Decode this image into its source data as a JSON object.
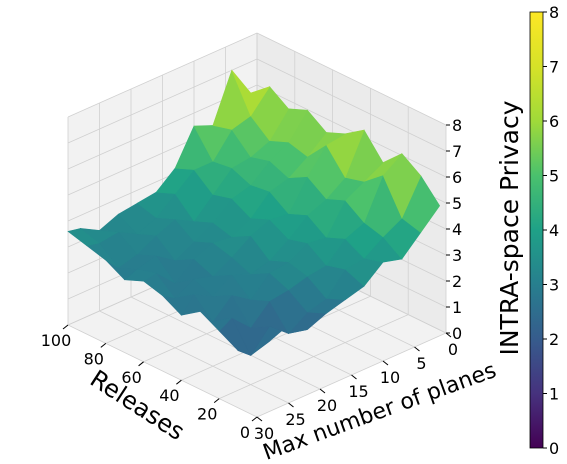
{
  "chart_data": {
    "type": "surface",
    "axes": {
      "x_label": "Releases",
      "y_label": "Max number of planes",
      "z_label": "INTRA-space Privacy",
      "x_ticks": [
        "100",
        "80",
        "60",
        "40",
        "20",
        "0"
      ],
      "x_tick_values": [
        100,
        80,
        60,
        40,
        20,
        0
      ],
      "y_ticks": [
        "0",
        "5",
        "10",
        "15",
        "20",
        "25",
        "30"
      ],
      "y_tick_values": [
        0,
        5,
        10,
        15,
        20,
        25,
        30
      ],
      "z_ticks": [
        "0",
        "1",
        "2",
        "3",
        "4",
        "5",
        "6",
        "7",
        "8"
      ],
      "z_tick_values": [
        0,
        1,
        2,
        3,
        4,
        5,
        6,
        7,
        8
      ],
      "xlim": [
        0,
        100
      ],
      "ylim": [
        0,
        30
      ],
      "zlim": [
        0,
        8
      ]
    },
    "colorbar": {
      "colormap": "viridis",
      "range": [
        0,
        8
      ],
      "ticks": [
        "0",
        "1",
        "2",
        "3",
        "4",
        "5",
        "6",
        "7",
        "8"
      ]
    },
    "grid": true,
    "surface_colors": {
      "low": "#440154",
      "mid": "#21918c",
      "high": "#fde725"
    },
    "surface": {
      "releases": [
        0,
        10,
        20,
        30,
        40,
        50,
        60,
        70,
        80,
        90,
        100
      ],
      "planes": [
        1,
        4,
        7,
        10,
        13,
        16,
        19,
        22,
        25,
        28,
        30
      ],
      "z": [
        [
          5.0,
          5.8,
          6.3,
          5.6,
          6.5,
          6.0,
          5.7,
          6.2,
          5.9,
          6.4,
          5.8
        ],
        [
          4.3,
          4.5,
          5.8,
          5.2,
          5.0,
          5.9,
          5.1,
          5.3,
          5.0,
          5.6,
          7.0
        ],
        [
          3.6,
          4.1,
          4.3,
          4.8,
          4.5,
          5.0,
          4.6,
          4.9,
          4.7,
          5.4,
          5.2
        ],
        [
          3.8,
          3.6,
          4.0,
          3.7,
          4.2,
          3.9,
          4.4,
          4.3,
          4.6,
          4.5,
          5.5
        ],
        [
          3.2,
          3.5,
          3.3,
          3.8,
          3.6,
          4.0,
          3.7,
          4.1,
          3.9,
          4.5,
          4.2
        ],
        [
          3.0,
          2.7,
          3.2,
          3.4,
          3.1,
          3.7,
          3.3,
          3.5,
          3.2,
          3.9,
          3.6
        ],
        [
          2.8,
          2.5,
          3.0,
          3.3,
          2.9,
          3.2,
          3.4,
          3.1,
          3.6,
          3.3,
          3.5
        ],
        [
          2.5,
          2.0,
          2.9,
          2.6,
          3.2,
          2.8,
          3.1,
          2.7,
          3.3,
          3.0,
          3.4
        ],
        [
          3.0,
          2.6,
          2.2,
          3.1,
          2.7,
          3.0,
          2.5,
          3.2,
          2.9,
          3.4,
          3.1
        ],
        [
          2.7,
          1.8,
          2.9,
          2.4,
          3.1,
          2.6,
          3.2,
          3.0,
          2.7,
          3.3,
          3.5
        ],
        [
          2.9,
          2.2,
          2.6,
          3.0,
          2.5,
          2.9,
          3.1,
          2.8,
          3.2,
          3.4,
          3.6
        ]
      ]
    }
  }
}
